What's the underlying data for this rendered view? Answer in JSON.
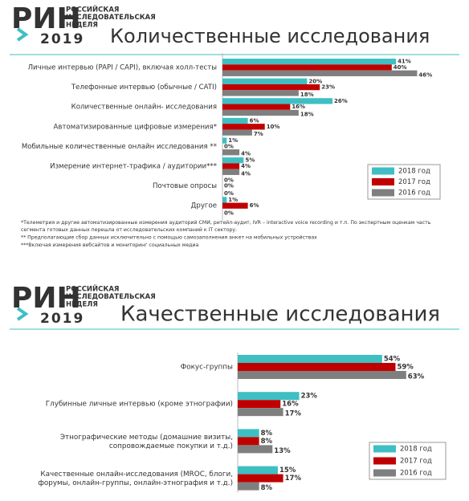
{
  "chart_data": [
    {
      "type": "bar",
      "orientation": "horizontal",
      "logo": "РИН",
      "logo_year": "2019",
      "logo_subtitle": "РОССИЙСКАЯ\nИССЛЕДОВАТЕЛЬСКАЯ\nНЕДЕЛЯ",
      "title": "Количественные исследования",
      "categories": [
        "Личные интервью (PAPI / CAPI), включая холл-тесты",
        "Телефонные интервью (обычные / CATI)",
        "Количественные онлайн- исследования",
        "Автоматизированные цифровые измерения*",
        "Мобильные количественные онлайн исследования **",
        "Измерение интернет-трафика / аудитории***",
        "Почтовые опросы",
        "Другое"
      ],
      "series": [
        {
          "name": "2018 год",
          "color": "#3fbfc3",
          "values": [
            41,
            20,
            26,
            6,
            1,
            5,
            0,
            1
          ],
          "value_labels": [
            "41%",
            "20%",
            "26%",
            "6%",
            "1%",
            "5%",
            "0%",
            "1%"
          ]
        },
        {
          "name": "2017 год",
          "color": "#c00000",
          "values": [
            40,
            23,
            16,
            10,
            0,
            4,
            0,
            6
          ],
          "value_labels": [
            "40%",
            "23%",
            "16%",
            "10%",
            "0%",
            "4%",
            "0%",
            "6%"
          ]
        },
        {
          "name": "2016 год",
          "color": "#7f7f7f",
          "values": [
            46,
            18,
            18,
            7,
            4,
            4,
            0,
            0
          ],
          "value_labels": [
            "46%",
            "18%",
            "18%",
            "7%",
            "4%",
            "4%",
            "0%",
            "0%"
          ]
        }
      ],
      "legend": "lower right",
      "footnotes": [
        "*Телеметрия и другие автоматизированные измерения аудиторий СМИ, ритейл-аудит, IVR – interactive voice recording и т.п. По экспертным оценкам часть\nсегмента готовых данных перешла от исследовательских компаний к IT сектору.",
        "** Предполагающие сбор данных исключительно с помощью самозаполнения анкет на мобильных устройствах",
        "***Включая измерения вебсайтов и мониторинг социальных медиа"
      ]
    },
    {
      "type": "bar",
      "orientation": "horizontal",
      "logo": "РИН",
      "logo_year": "2019",
      "logo_subtitle": "РОССИЙСКАЯ\nИССЛЕДОВАТЕЛЬСКАЯ\nНЕДЕЛЯ",
      "title": "Качественные исследования",
      "categories": [
        "Фокус-группы",
        "Глубинные личные интервью (кроме этнографии)",
        "Этнографические методы (домашние визиты,\nсопровождаемые покупки и т.д.)",
        "Качественные онлайн-исследования (MROC, блоги,\nфорумы, онлайн-группы, онлайн-этнография и т.д.)"
      ],
      "series": [
        {
          "name": "2018 год",
          "color": "#3fbfc3",
          "values": [
            54,
            23,
            8,
            15
          ],
          "value_labels": [
            "54%",
            "23%",
            "8%",
            "15%"
          ]
        },
        {
          "name": "2017 год",
          "color": "#c00000",
          "values": [
            59,
            16,
            8,
            17
          ],
          "value_labels": [
            "59%",
            "16%",
            "8%",
            "17%"
          ]
        },
        {
          "name": "2016 год",
          "color": "#7f7f7f",
          "values": [
            63,
            17,
            13,
            8
          ],
          "value_labels": [
            "63%",
            "17%",
            "13%",
            "8%"
          ]
        }
      ],
      "legend": "lower right"
    }
  ]
}
